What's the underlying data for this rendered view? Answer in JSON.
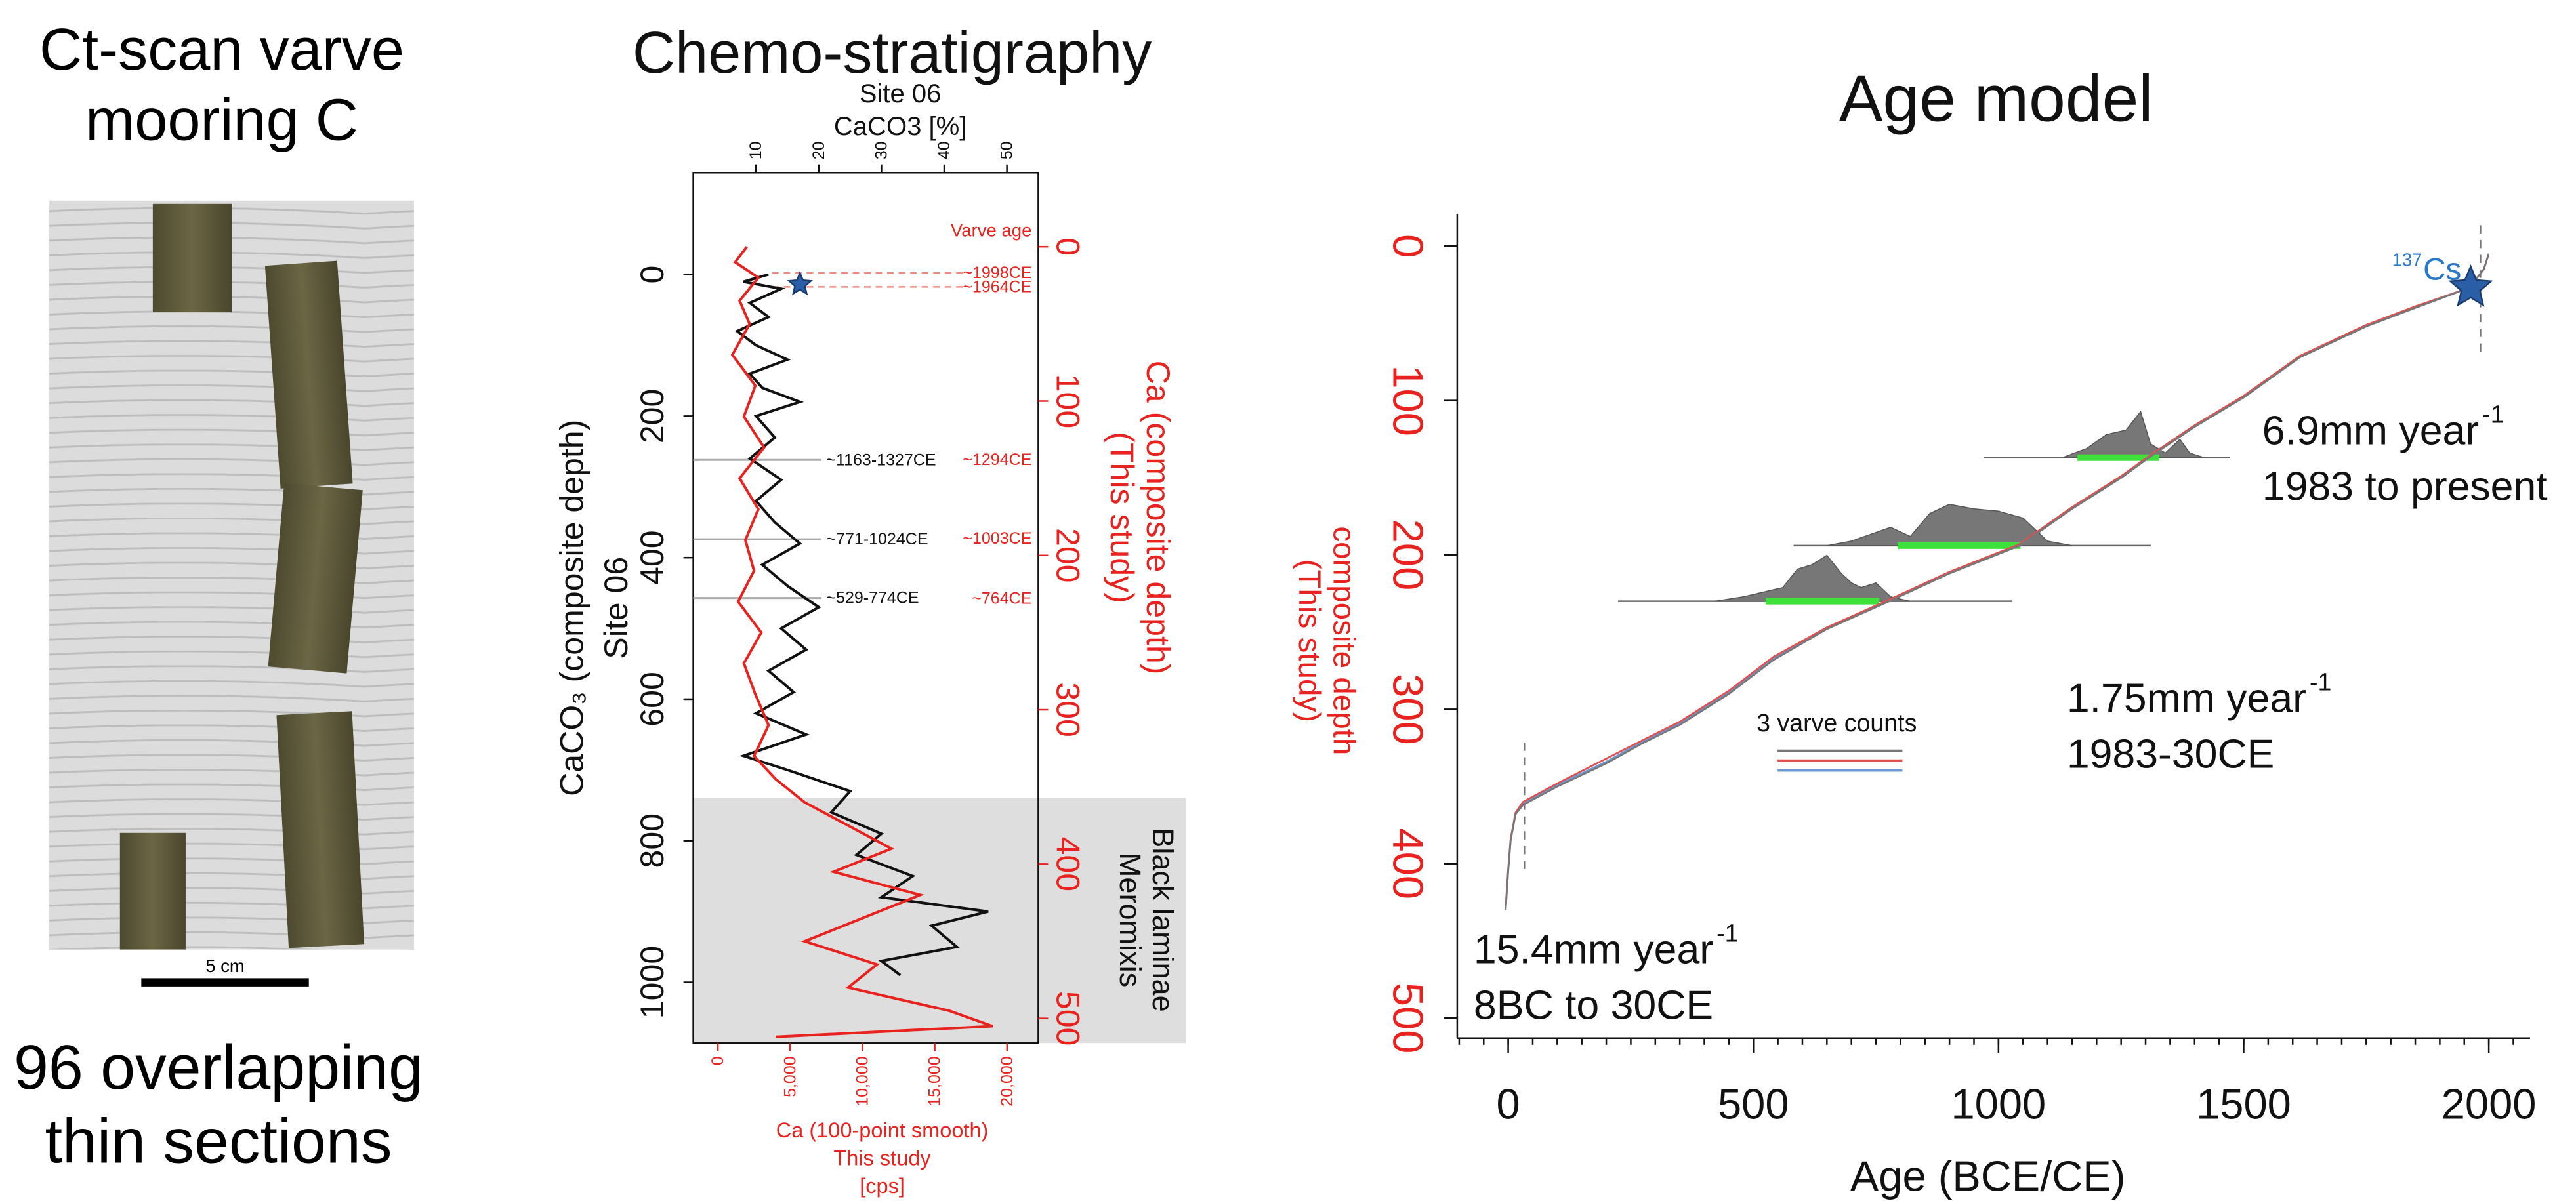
{
  "ct_panel": {
    "title_lines": [
      "Ct-scan varve",
      "mooring C"
    ],
    "scale_label": "5 cm",
    "caption_lines": [
      "96 overlapping",
      "thin sections"
    ]
  },
  "chart_data": [
    {
      "type": "profile",
      "title": "Chemo-stratigraphy",
      "x_label_lines": [
        "Site 06",
        "CaCO3 [%]"
      ],
      "xlim": [
        0,
        55
      ],
      "xticks": [
        10,
        20,
        30,
        40,
        50
      ],
      "y_label_lines": [
        "CaCO₃ (composite depth)",
        "Site 06"
      ],
      "ylim": [
        -144,
        1086
      ],
      "yticks": [
        0,
        200,
        400,
        600,
        800,
        1000
      ],
      "y_inverted": true,
      "y2_label_lines": [
        "Ca (composite depth)",
        "(This study)"
      ],
      "y2lim": [
        -48,
        516
      ],
      "y2ticks": [
        0,
        100,
        200,
        300,
        400,
        500
      ],
      "x2_label_lines": [
        "Ca (100-point smooth)",
        "This study",
        "[cps]"
      ],
      "x2lim": [
        -1700,
        22160
      ],
      "x2ticks": [
        0,
        {
          "value": 5000,
          "label": "5,000"
        },
        {
          "value": 10000,
          "label": "10,000"
        },
        {
          "value": 15000,
          "label": "15,000"
        },
        {
          "value": 20000,
          "label": "20,000"
        }
      ],
      "series": [
        {
          "color": "#111111",
          "depth": [
            0,
            10,
            20,
            40,
            60,
            80,
            100,
            120,
            140,
            160,
            180,
            200,
            230,
            260,
            290,
            320,
            350,
            380,
            410,
            440,
            470,
            500,
            530,
            560,
            590,
            620,
            650,
            680,
            700,
            730,
            760,
            790,
            820,
            850,
            880,
            900,
            920,
            950,
            970,
            990
          ],
          "values": [
            12,
            8,
            14,
            9,
            12,
            7,
            10,
            15,
            9,
            11,
            17,
            10,
            13,
            9,
            14,
            10,
            13,
            17,
            11,
            15,
            20,
            14,
            18,
            12,
            16,
            10,
            18,
            8,
            15,
            25,
            22,
            30,
            26,
            35,
            30,
            47,
            38,
            42,
            30,
            33
          ]
        },
        {
          "color": "#e8231f",
          "axis": "y2",
          "depth": [
            0,
            10,
            20,
            35,
            50,
            70,
            90,
            110,
            130,
            150,
            170,
            190,
            210,
            230,
            250,
            270,
            290,
            310,
            330,
            345,
            360,
            375,
            390,
            405,
            420,
            435,
            450,
            465,
            480,
            495,
            505,
            512
          ],
          "values": [
            2000,
            1200,
            2800,
            1500,
            2200,
            1000,
            2600,
            1800,
            3200,
            1500,
            2800,
            1900,
            2500,
            1400,
            3000,
            1800,
            2600,
            3500,
            2500,
            4000,
            6000,
            9000,
            12000,
            8000,
            14000,
            10000,
            6000,
            11000,
            9000,
            16000,
            19000,
            4000
          ]
        }
      ],
      "varve_age_title": "Varve age",
      "varve_ages": [
        {
          "label": "~1998CE",
          "depth": 17,
          "dashed": true
        },
        {
          "label": "~1964CE",
          "depth": 26,
          "dashed": true
        },
        {
          "label": "~1294CE",
          "depth": 138
        },
        {
          "label": "~1003CE",
          "depth": 189
        },
        {
          "label": "~764CE",
          "depth": 228
        }
      ],
      "ranges": [
        {
          "label": "~1163-1327CE",
          "depth": 262
        },
        {
          "label": "~771-1024CE",
          "depth": 374
        },
        {
          "label": "~529-774CE",
          "depth": 457
        }
      ],
      "star": {
        "value": 17,
        "depth": 14
      },
      "shaded_from_depth": 740,
      "shaded_labels": [
        "Black laminae",
        "Meromixis"
      ]
    },
    {
      "type": "line",
      "title": "Age model",
      "x_label": "Age (BCE/CE)",
      "y_label_lines": [
        "composite depth",
        "(This study)"
      ],
      "xlim": [
        -104,
        2084
      ],
      "xticks": [
        0,
        500,
        1000,
        1500,
        2000
      ],
      "xminor_step": 50,
      "ylim": [
        -21,
        513
      ],
      "yticks": [
        0,
        100,
        200,
        300,
        400,
        500
      ],
      "y_inverted": true,
      "x": [
        -5,
        0,
        5,
        15,
        30,
        100,
        200,
        274,
        350,
        450,
        541,
        650,
        777,
        900,
        1043,
        1150,
        1250,
        1311,
        1400,
        1500,
        1615,
        1750,
        1850,
        1960,
        1990,
        2000
      ],
      "series": [
        {
          "color": "#6a9ad8",
          "values": [
            429,
            405,
            385,
            367,
            361,
            349,
            334,
            321,
            309,
            289,
            267,
            247,
            230,
            212,
            194,
            170,
            150,
            136,
            117,
            98,
            72,
            52,
            40,
            27,
            15,
            5
          ]
        },
        {
          "color": "#e05050",
          "values": [
            428,
            404,
            384,
            367,
            360,
            348,
            332,
            320,
            308,
            288,
            266,
            247,
            229,
            211,
            193,
            169,
            149,
            135,
            116,
            97,
            71,
            51,
            39,
            27,
            15,
            5
          ]
        },
        {
          "color": "#777777",
          "values": [
            430,
            405,
            385,
            368,
            362,
            350,
            335,
            322,
            310,
            290,
            268,
            248,
            230,
            212,
            194,
            170,
            150,
            136,
            117,
            98,
            72,
            52,
            40,
            27,
            15,
            5
          ]
        }
      ],
      "legend_title": "3 varve counts",
      "distributions": [
        {
          "depth": 230,
          "span": [
            224,
            1027
          ],
          "range": [
            525,
            757
          ],
          "ages": [
            420,
            480,
            520,
            560,
            590,
            620,
            650,
            680,
            700,
            720,
            750,
            780,
            820
          ],
          "density": [
            0,
            0.1,
            0.2,
            0.3,
            0.7,
            0.8,
            1.0,
            0.6,
            0.4,
            0.3,
            0.4,
            0.1,
            0
          ]
        },
        {
          "depth": 194,
          "span": [
            582,
            1311
          ],
          "range": [
            794,
            1045
          ],
          "ages": [
            650,
            700,
            780,
            820,
            860,
            900,
            950,
            1000,
            1050,
            1100,
            1150
          ],
          "density": [
            0,
            0.1,
            0.4,
            0.2,
            0.7,
            0.9,
            0.8,
            0.75,
            0.6,
            0.1,
            0
          ]
        },
        {
          "depth": 137,
          "span": [
            970,
            1472
          ],
          "range": [
            1161,
            1328
          ],
          "ages": [
            1130,
            1180,
            1220,
            1260,
            1290,
            1310,
            1340,
            1370,
            1390,
            1420
          ],
          "density": [
            0,
            0.2,
            0.5,
            0.6,
            1.0,
            0.3,
            0.1,
            0.4,
            0.1,
            0
          ]
        }
      ],
      "cs137": {
        "superscript": "137",
        "label": "Cs",
        "age": 1963,
        "depth": 27
      },
      "dashed_ages": [
        1983,
        33
      ],
      "rates": [
        {
          "text": "6.9mm year",
          "superscript": "-1",
          "period": "1983 to present"
        },
        {
          "text": "1.75mm year",
          "superscript": "-1",
          "period": "1983-30CE"
        },
        {
          "text": "15.4mm year",
          "superscript": "-1",
          "period": "8BC to 30CE"
        }
      ]
    }
  ]
}
